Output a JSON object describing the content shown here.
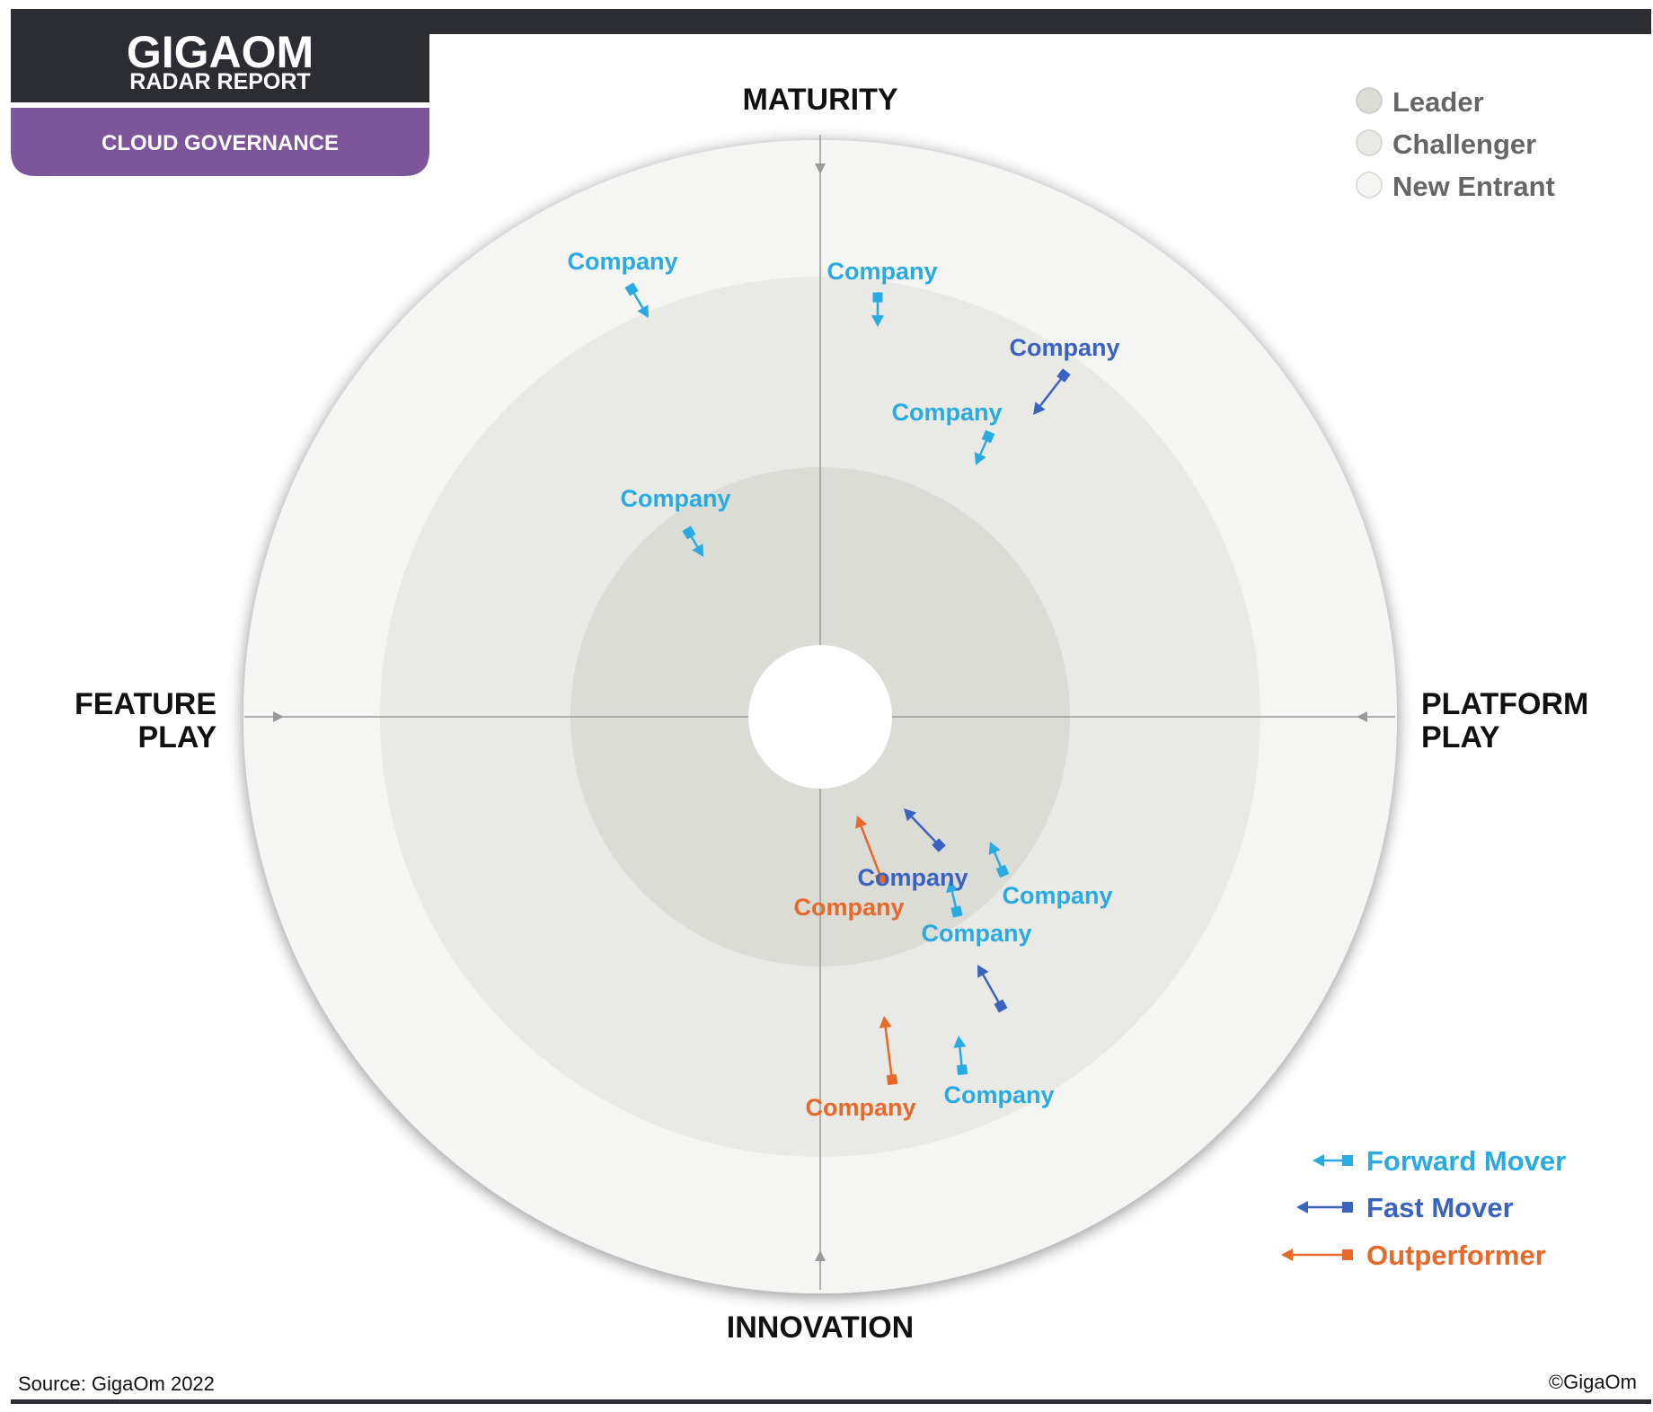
{
  "header": {
    "brand_line1": "GIGAOM",
    "brand_line2": "RADAR REPORT",
    "report_topic": "CLOUD GOVERNANCE"
  },
  "axes": {
    "top": "MATURITY",
    "bottom": "INNOVATION",
    "left_line1": "FEATURE",
    "left_line2": "PLAY",
    "right_line1": "PLATFORM",
    "right_line2": "PLAY"
  },
  "legend_rings": [
    {
      "label": "Leader",
      "color": "#dcdcd7"
    },
    {
      "label": "Challenger",
      "color": "#e9e9e5"
    },
    {
      "label": "New Entrant",
      "color": "#f5f5f3"
    }
  ],
  "legend_movers": [
    {
      "label": "Forward Mover",
      "color": "#29abe2"
    },
    {
      "label": "Fast Mover",
      "color": "#3a62c0"
    },
    {
      "label": "Outperformer",
      "color": "#e8682a"
    }
  ],
  "colors": {
    "forward": "#29abe2",
    "fast": "#3a62c0",
    "outperformer": "#e8682a",
    "header_dark": "#2b2d33",
    "header_purple": "#7d559b"
  },
  "companies": [
    {
      "name": "Company",
      "type": "forward"
    },
    {
      "name": "Company",
      "type": "forward"
    },
    {
      "name": "Company",
      "type": "fast"
    },
    {
      "name": "Company",
      "type": "forward"
    },
    {
      "name": "Company",
      "type": "forward"
    },
    {
      "name": "Company",
      "type": "outperformer"
    },
    {
      "name": "Company",
      "type": "forward"
    },
    {
      "name": "Company",
      "type": "forward"
    },
    {
      "name": "Company",
      "type": "fast"
    },
    {
      "name": "Company",
      "type": "fast"
    },
    {
      "name": "Company",
      "type": "outperformer"
    },
    {
      "name": "Company",
      "type": "forward"
    }
  ],
  "footer": {
    "source": "Source: GigaOm 2022",
    "copyright": "©GigaOm"
  }
}
